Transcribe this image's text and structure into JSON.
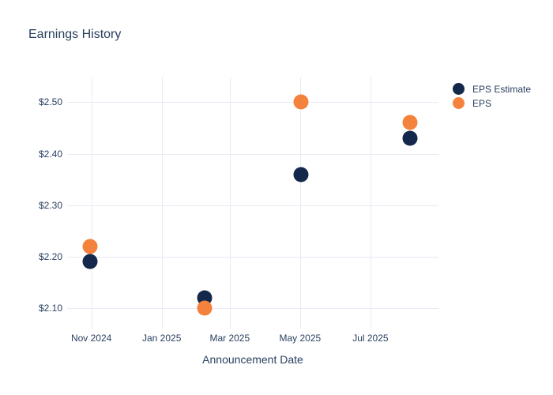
{
  "colors": {
    "background": "#ffffff",
    "grid": "#e8ebf4",
    "text": "#2a3f5f",
    "navy": "#13284a",
    "orange": "#f5823c"
  },
  "chart_data": {
    "type": "scatter",
    "title": "Earnings History",
    "xlabel": "Announcement Date",
    "ylabel": "",
    "grid": true,
    "legend_position": "top-right-outside",
    "marker_size": 19,
    "x_range": [
      "2024-10-11",
      "2025-08-29"
    ],
    "y_range": [
      2.068,
      2.548
    ],
    "x_ticks": [
      {
        "label": "Nov 2024",
        "date": "2024-11-01"
      },
      {
        "label": "Jan 2025",
        "date": "2025-01-01"
      },
      {
        "label": "Mar 2025",
        "date": "2025-03-01"
      },
      {
        "label": "May 2025",
        "date": "2025-05-01"
      },
      {
        "label": "Jul 2025",
        "date": "2025-07-01"
      }
    ],
    "y_ticks": [
      {
        "label": "$2.50",
        "value": 2.5
      },
      {
        "label": "$2.40",
        "value": 2.4
      },
      {
        "label": "$2.30",
        "value": 2.3
      },
      {
        "label": "$2.20",
        "value": 2.2
      },
      {
        "label": "$2.10",
        "value": 2.1
      }
    ],
    "series": [
      {
        "name": "EPS Estimate",
        "color": "#13284a",
        "points": [
          {
            "date": "2024-10-31",
            "value": 2.19
          },
          {
            "date": "2025-02-07",
            "value": 2.12
          },
          {
            "date": "2025-05-02",
            "value": 2.36
          },
          {
            "date": "2025-08-04",
            "value": 2.43
          }
        ]
      },
      {
        "name": "EPS",
        "color": "#f5823c",
        "points": [
          {
            "date": "2024-10-31",
            "value": 2.22
          },
          {
            "date": "2025-02-07",
            "value": 2.1
          },
          {
            "date": "2025-05-02",
            "value": 2.5
          },
          {
            "date": "2025-08-04",
            "value": 2.46
          }
        ]
      }
    ]
  }
}
